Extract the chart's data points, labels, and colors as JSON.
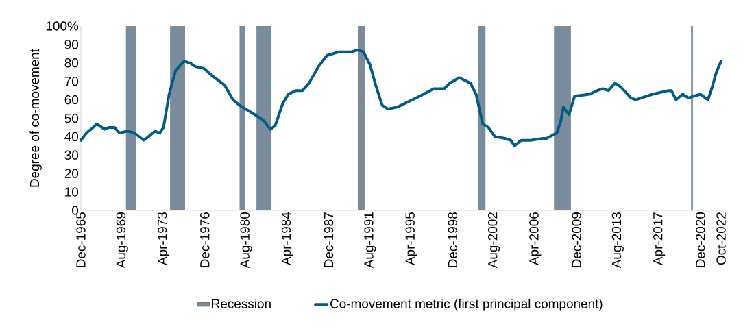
{
  "chart_data": {
    "type": "line",
    "ylabel": "Degree of co-movement",
    "x": [
      "1965-12",
      "1966-03",
      "1966-06",
      "1967-01",
      "1967-05",
      "1968-01",
      "1968-06",
      "1968-12",
      "1969-05",
      "1970-02",
      "1970-09",
      "1971-07",
      "1971-12",
      "1972-07",
      "1972-12",
      "1973-04",
      "1973-10",
      "1974-05",
      "1975-02",
      "1975-08",
      "1976-02",
      "1976-11",
      "1977-08",
      "1978-09",
      "1979-06",
      "1980-01",
      "1981-02",
      "1982-02",
      "1982-10",
      "1983-03",
      "1983-11",
      "1984-05",
      "1985-01",
      "1985-08",
      "1986-03",
      "1987-01",
      "1987-10",
      "1988-11",
      "1989-12",
      "1990-07",
      "1991-01",
      "1991-08",
      "1992-02",
      "1992-09",
      "1993-03",
      "1994-01",
      "1995-01",
      "1996-01",
      "1997-04",
      "1998-03",
      "1998-09",
      "1999-07",
      "2000-07",
      "2001-01",
      "2001-08",
      "2002-02",
      "2002-09",
      "2003-08",
      "2004-02",
      "2004-06",
      "2005-01",
      "2005-11",
      "2006-12",
      "2007-04",
      "2008-03",
      "2008-07",
      "2008-10",
      "2009-04",
      "2009-10",
      "2011-02",
      "2011-10",
      "2012-04",
      "2012-10",
      "2013-05",
      "2013-11",
      "2014-10",
      "2015-03",
      "2016-09",
      "2018-02",
      "2018-05",
      "2018-10",
      "2019-05",
      "2019-11",
      "2020-12",
      "2021-08",
      "2021-12",
      "2022-05",
      "2022-10"
    ],
    "series": [
      {
        "name": "Co-movement metric (first principal component)",
        "color": "#005b85",
        "values": [
          38,
          40,
          42,
          45,
          47,
          44,
          45,
          45,
          42,
          43,
          42,
          38,
          40,
          43,
          42,
          45,
          63,
          76,
          81,
          80,
          78,
          77,
          73,
          68,
          60,
          57,
          53,
          49,
          44,
          46,
          58,
          63,
          65,
          65,
          69,
          78,
          84,
          86,
          86,
          87,
          86,
          79,
          68,
          57,
          55,
          56,
          59,
          62,
          66,
          66,
          69,
          72,
          69,
          63,
          47,
          45,
          40,
          39,
          38,
          35,
          38,
          38,
          39,
          39,
          42,
          48,
          56,
          52,
          62,
          63,
          65,
          66,
          65,
          69,
          67,
          61,
          60,
          63,
          65,
          65,
          60,
          63,
          61,
          63,
          60,
          66,
          75,
          81
        ]
      }
    ],
    "xlim": [
      "1965-12",
      "2022-10"
    ],
    "xticks": [
      {
        "value": "1965-12",
        "label": "Dec-1965"
      },
      {
        "value": "1969-08",
        "label": "Aug-1969"
      },
      {
        "value": "1973-04",
        "label": "Apr-1973"
      },
      {
        "value": "1976-12",
        "label": "Dec-1976"
      },
      {
        "value": "1980-08",
        "label": "Aug-1980"
      },
      {
        "value": "1984-04",
        "label": "Apr-1984"
      },
      {
        "value": "1987-12",
        "label": "Dec-1987"
      },
      {
        "value": "1991-08",
        "label": "Aug-1991"
      },
      {
        "value": "1995-04",
        "label": "Apr-1995"
      },
      {
        "value": "1998-12",
        "label": "Dec-1998"
      },
      {
        "value": "2002-08",
        "label": "Aug-2002"
      },
      {
        "value": "2006-04",
        "label": "Apr-2006"
      },
      {
        "value": "2009-12",
        "label": "Dec-2009"
      },
      {
        "value": "2013-08",
        "label": "Aug-2013"
      },
      {
        "value": "2017-04",
        "label": "Apr-2017"
      },
      {
        "value": "2020-12",
        "label": "Dec-2020"
      },
      {
        "value": "2022-10",
        "label": "Oct-2022"
      }
    ],
    "ylim": [
      0,
      100
    ],
    "yticks": [
      0,
      10,
      20,
      30,
      40,
      50,
      60,
      70,
      80,
      90,
      {
        "value": 100,
        "label": "100%"
      }
    ],
    "bands": [
      {
        "axis": "x",
        "from": "1969-12",
        "to": "1970-11",
        "label": "Recession",
        "color": "#7a8c9c"
      },
      {
        "axis": "x",
        "from": "1973-11",
        "to": "1975-03",
        "color": "#7a8c9c"
      },
      {
        "axis": "x",
        "from": "1980-01",
        "to": "1980-07",
        "color": "#7a8c9c"
      },
      {
        "axis": "x",
        "from": "1981-07",
        "to": "1982-11",
        "color": "#7a8c9c"
      },
      {
        "axis": "x",
        "from": "1990-07",
        "to": "1991-03",
        "color": "#7a8c9c"
      },
      {
        "axis": "x",
        "from": "2001-03",
        "to": "2001-11",
        "color": "#7a8c9c"
      },
      {
        "axis": "x",
        "from": "2007-12",
        "to": "2009-06",
        "color": "#7a8c9c"
      },
      {
        "axis": "x",
        "from": "2020-02",
        "to": "2020-04",
        "color": "#7a8c9c"
      }
    ],
    "legend": "bottom",
    "marker": "none",
    "line_style": "solid"
  }
}
